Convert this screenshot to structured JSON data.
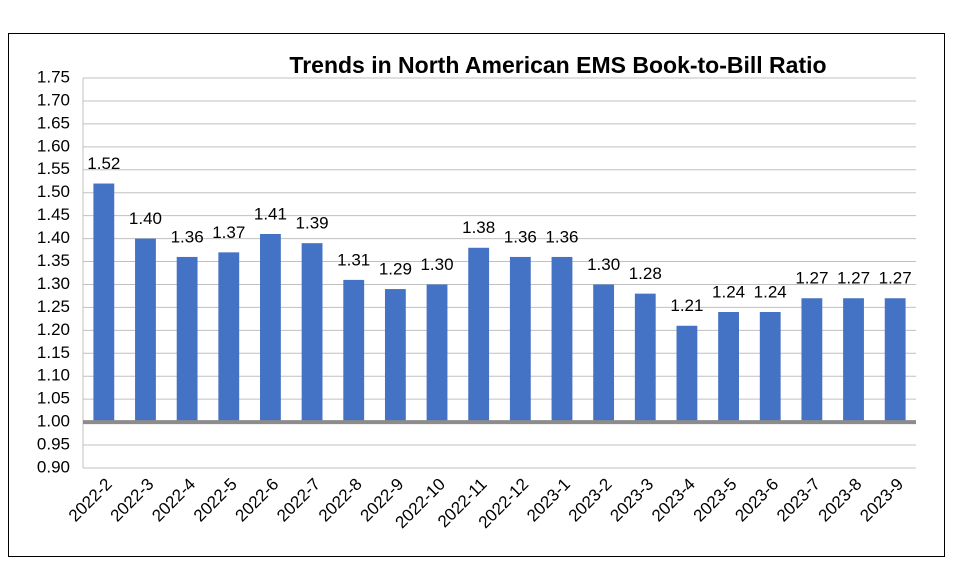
{
  "chart_data": {
    "type": "bar",
    "title": "Trends in North American EMS Book-to-Bill Ratio",
    "categories": [
      "2022-2",
      "2022-3",
      "2022-4",
      "2022-5",
      "2022-6",
      "2022-7",
      "2022-8",
      "2022-9",
      "2022-10",
      "2022-11",
      "2022-12",
      "2023-1",
      "2023-2",
      "2023-3",
      "2023-4",
      "2023-5",
      "2023-6",
      "2023-7",
      "2023-8",
      "2023-9"
    ],
    "values": [
      1.52,
      1.4,
      1.36,
      1.37,
      1.41,
      1.39,
      1.31,
      1.29,
      1.3,
      1.38,
      1.36,
      1.36,
      1.3,
      1.28,
      1.21,
      1.24,
      1.24,
      1.27,
      1.27,
      1.27
    ],
    "value_labels": [
      "1.52",
      "1.40",
      "1.36",
      "1.37",
      "1.41",
      "1.39",
      "1.31",
      "1.29",
      "1.30",
      "1.38",
      "1.36",
      "1.36",
      "1.30",
      "1.28",
      "1.21",
      "1.24",
      "1.24",
      "1.27",
      "1.27",
      "1.27"
    ],
    "color": "#4472c4",
    "baseline": 1,
    "ylim": [
      0.9,
      1.75
    ],
    "yticks": [
      {
        "value": 0.9,
        "label": "0.90"
      },
      0.95,
      {
        "value": 1,
        "label": "1.00"
      },
      1.05,
      {
        "value": 1.1,
        "label": "1.10"
      },
      1.15,
      {
        "value": 1.2,
        "label": "1.20"
      },
      1.25,
      {
        "value": 1.3,
        "label": "1.30"
      },
      1.35,
      {
        "value": 1.4,
        "label": "1.40"
      },
      1.45,
      {
        "value": 1.5,
        "label": "1.50"
      },
      1.55,
      {
        "value": 1.6,
        "label": "1.60"
      },
      1.65,
      {
        "value": 1.7,
        "label": "1.70"
      },
      1.75
    ],
    "grid": true
  }
}
